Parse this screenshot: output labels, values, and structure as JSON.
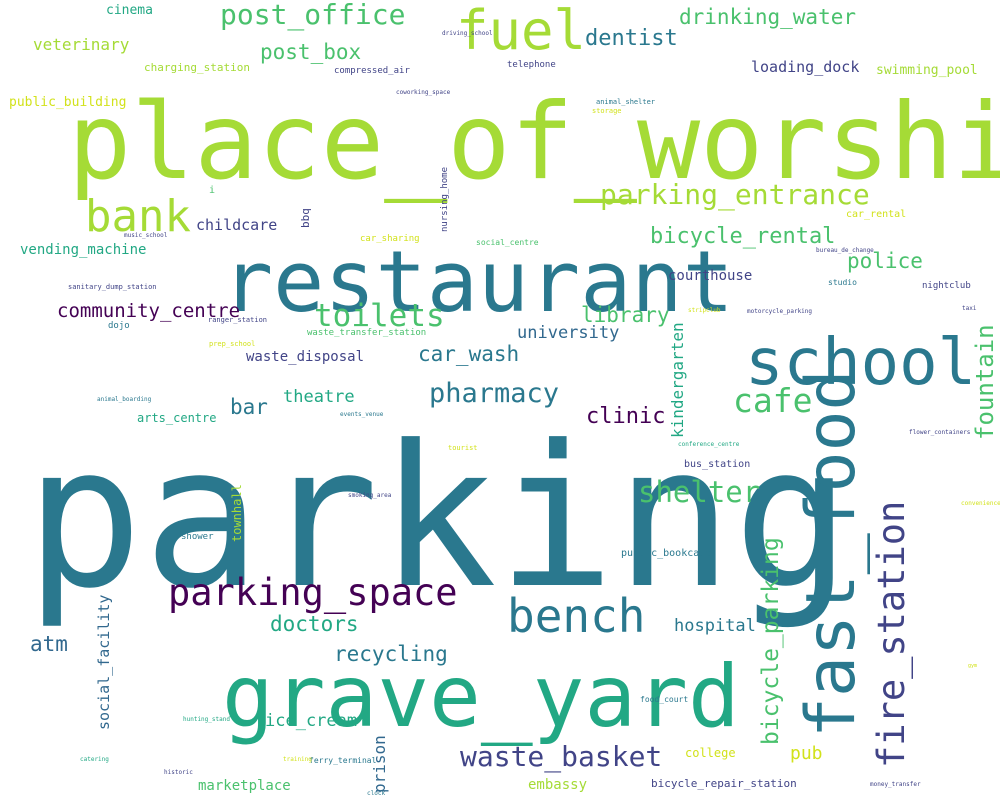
{
  "palette": {
    "lime": "#a5db36",
    "green": "#4ac16d",
    "teal": "#2a788e",
    "sea": "#22a884",
    "navy": "#414487",
    "purple": "#440154",
    "yellow": "#d2e21b",
    "blue": "#31688e"
  },
  "words": [
    {
      "text": "parking",
      "color": "teal",
      "vertical": false
    },
    {
      "text": "place_of_worship",
      "color": "lime",
      "vertical": false
    },
    {
      "text": "restaurant",
      "color": "teal",
      "vertical": false
    },
    {
      "text": "school",
      "color": "teal",
      "vertical": false
    },
    {
      "text": "grave_yard",
      "color": "sea",
      "vertical": false
    },
    {
      "text": "fast_food",
      "color": "teal",
      "vertical": true
    },
    {
      "text": "fuel",
      "color": "lime",
      "vertical": false
    },
    {
      "text": "bank",
      "color": "lime",
      "vertical": false
    },
    {
      "text": "parking_space",
      "color": "purple",
      "vertical": false
    },
    {
      "text": "bench",
      "color": "teal",
      "vertical": false
    },
    {
      "text": "fire_station",
      "color": "navy",
      "vertical": true
    },
    {
      "text": "toilets",
      "color": "green",
      "vertical": false
    },
    {
      "text": "parking_entrance",
      "color": "lime",
      "vertical": false
    },
    {
      "text": "post_office",
      "color": "green",
      "vertical": false
    },
    {
      "text": "cafe",
      "color": "green",
      "vertical": false
    },
    {
      "text": "shelter",
      "color": "green",
      "vertical": false
    },
    {
      "text": "pharmacy",
      "color": "teal",
      "vertical": false
    },
    {
      "text": "waste_basket",
      "color": "navy",
      "vertical": false
    },
    {
      "text": "bicycle_parking",
      "color": "green",
      "vertical": true
    },
    {
      "text": "fountain",
      "color": "green",
      "vertical": true
    },
    {
      "text": "drinking_water",
      "color": "green",
      "vertical": false
    },
    {
      "text": "dentist",
      "color": "teal",
      "vertical": false
    },
    {
      "text": "bicycle_rental",
      "color": "green",
      "vertical": false
    },
    {
      "text": "police",
      "color": "green",
      "vertical": false
    },
    {
      "text": "community_centre",
      "color": "purple",
      "vertical": false
    },
    {
      "text": "clinic",
      "color": "purple",
      "vertical": false
    },
    {
      "text": "car_wash",
      "color": "teal",
      "vertical": false
    },
    {
      "text": "library",
      "color": "green",
      "vertical": false
    },
    {
      "text": "doctors",
      "color": "sea",
      "vertical": false
    },
    {
      "text": "recycling",
      "color": "teal",
      "vertical": false
    },
    {
      "text": "atm",
      "color": "blue",
      "vertical": false
    },
    {
      "text": "bar",
      "color": "teal",
      "vertical": false
    },
    {
      "text": "post_box",
      "color": "green",
      "vertical": false
    },
    {
      "text": "kindergarten",
      "color": "sea",
      "vertical": true
    },
    {
      "text": "theatre",
      "color": "sea",
      "vertical": false
    },
    {
      "text": "hospital",
      "color": "teal",
      "vertical": false
    },
    {
      "text": "university",
      "color": "blue",
      "vertical": false
    },
    {
      "text": "ice_cream",
      "color": "sea",
      "vertical": false
    },
    {
      "text": "pub",
      "color": "yellow",
      "vertical": false
    },
    {
      "text": "prison",
      "color": "blue",
      "vertical": true
    },
    {
      "text": "social_facility",
      "color": "blue",
      "vertical": true
    },
    {
      "text": "veterinary",
      "color": "lime",
      "vertical": false
    },
    {
      "text": "loading_dock",
      "color": "navy",
      "vertical": false
    },
    {
      "text": "childcare",
      "color": "navy",
      "vertical": false
    },
    {
      "text": "vending_machine",
      "color": "sea",
      "vertical": false
    },
    {
      "text": "courthouse",
      "color": "navy",
      "vertical": false
    },
    {
      "text": "waste_disposal",
      "color": "navy",
      "vertical": false
    },
    {
      "text": "marketplace",
      "color": "green",
      "vertical": false
    },
    {
      "text": "embassy",
      "color": "lime",
      "vertical": false
    },
    {
      "text": "swimming_pool",
      "color": "lime",
      "vertical": false
    },
    {
      "text": "arts_centre",
      "color": "sea",
      "vertical": false
    },
    {
      "text": "cinema",
      "color": "sea",
      "vertical": false
    },
    {
      "text": "public_building",
      "color": "yellow",
      "vertical": false
    },
    {
      "text": "charging_station",
      "color": "lime",
      "vertical": false
    },
    {
      "text": "townhall",
      "color": "lime",
      "vertical": true
    },
    {
      "text": "college",
      "color": "yellow",
      "vertical": false
    },
    {
      "text": "bicycle_repair_station",
      "color": "navy",
      "vertical": false
    },
    {
      "text": "bbq",
      "color": "navy",
      "vertical": true
    },
    {
      "text": "bus_station",
      "color": "navy",
      "vertical": false
    },
    {
      "text": "public_bookcase",
      "color": "teal",
      "vertical": false
    },
    {
      "text": "car_rental",
      "color": "yellow",
      "vertical": false
    },
    {
      "text": "compressed_air",
      "color": "navy",
      "vertical": false
    },
    {
      "text": "telephone",
      "color": "navy",
      "vertical": false
    },
    {
      "text": "nursing_home",
      "color": "navy",
      "vertical": true
    },
    {
      "text": "nightclub",
      "color": "navy",
      "vertical": false
    },
    {
      "text": "waste_transfer_station",
      "color": "green",
      "vertical": false
    },
    {
      "text": "dojo",
      "color": "teal",
      "vertical": false
    },
    {
      "text": "shower",
      "color": "teal",
      "vertical": false
    },
    {
      "text": "ferry_terminal",
      "color": "teal",
      "vertical": false
    },
    {
      "text": "clock",
      "color": "teal",
      "vertical": false
    },
    {
      "text": "i",
      "color": "green",
      "vertical": false
    },
    {
      "text": "car_sharing",
      "color": "yellow",
      "vertical": false
    },
    {
      "text": "social_centre",
      "color": "green",
      "vertical": false
    },
    {
      "text": "studio",
      "color": "teal",
      "vertical": false
    },
    {
      "text": "food_court",
      "color": "teal",
      "vertical": false
    },
    {
      "text": "animal_shelter",
      "color": "teal",
      "vertical": false
    },
    {
      "text": "storage",
      "color": "yellow",
      "vertical": false
    },
    {
      "text": "sanitary_dump_station",
      "color": "navy",
      "vertical": false
    },
    {
      "text": "ranger_station",
      "color": "navy",
      "vertical": false
    },
    {
      "text": "prep_school",
      "color": "yellow",
      "vertical": false
    },
    {
      "text": "animal_boarding",
      "color": "teal",
      "vertical": false
    },
    {
      "text": "events_venue",
      "color": "teal",
      "vertical": false
    },
    {
      "text": "tourist",
      "color": "yellow",
      "vertical": false
    },
    {
      "text": "conference_centre",
      "color": "sea",
      "vertical": false
    },
    {
      "text": "flower_containers",
      "color": "navy",
      "vertical": false
    },
    {
      "text": "smoking_area",
      "color": "navy",
      "vertical": false
    },
    {
      "text": "convenience",
      "color": "yellow",
      "vertical": false
    },
    {
      "text": "hunting_stand",
      "color": "sea",
      "vertical": false
    },
    {
      "text": "catering",
      "color": "sea",
      "vertical": false
    },
    {
      "text": "historic",
      "color": "navy",
      "vertical": false
    },
    {
      "text": "training",
      "color": "yellow",
      "vertical": false
    },
    {
      "text": "money_transfer",
      "color": "navy",
      "vertical": false
    },
    {
      "text": "gym",
      "color": "yellow",
      "vertical": false
    },
    {
      "text": "driving_school",
      "color": "navy",
      "vertical": false
    },
    {
      "text": "coworking_space",
      "color": "navy",
      "vertical": false
    },
    {
      "text": "music_school",
      "color": "navy",
      "vertical": false
    },
    {
      "text": "bureau_de_change",
      "color": "navy",
      "vertical": false
    },
    {
      "text": "taxi",
      "color": "navy",
      "vertical": false
    },
    {
      "text": "motorcycle_parking",
      "color": "navy",
      "vertical": false
    },
    {
      "text": "stripclub",
      "color": "yellow",
      "vertical": false
    }
  ]
}
